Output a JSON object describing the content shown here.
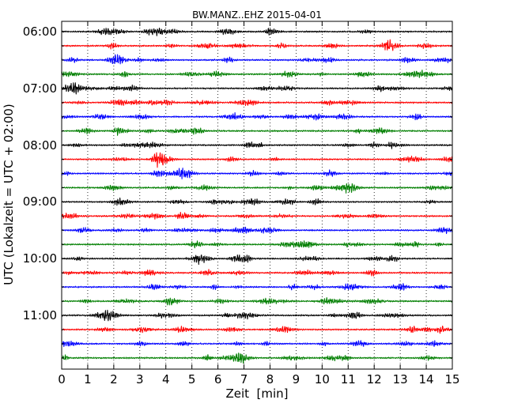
{
  "chart_data": {
    "type": "line",
    "title": "BW.MANZ..EHZ 2015-04-01",
    "xlabel": "Zeit  [min]",
    "ylabel": "UTC (Lokalzeit = UTC + 02:00)",
    "xlim": [
      0,
      15
    ],
    "x_ticks": [
      "0",
      "1",
      "2",
      "3",
      "4",
      "5",
      "6",
      "7",
      "8",
      "9",
      "10",
      "11",
      "12",
      "13",
      "14",
      "15"
    ],
    "y_ticks": [
      "06:00",
      "07:00",
      "08:00",
      "09:00",
      "10:00",
      "11:00"
    ],
    "trace_colors": [
      "#000000",
      "#ff0000",
      "#0000ff",
      "#007f00"
    ],
    "grid": "vertical dotted at each minute",
    "trace_count": 24,
    "trace_length_minutes": 15,
    "first_trace_start": "06:00",
    "last_trace_start": "11:45"
  }
}
